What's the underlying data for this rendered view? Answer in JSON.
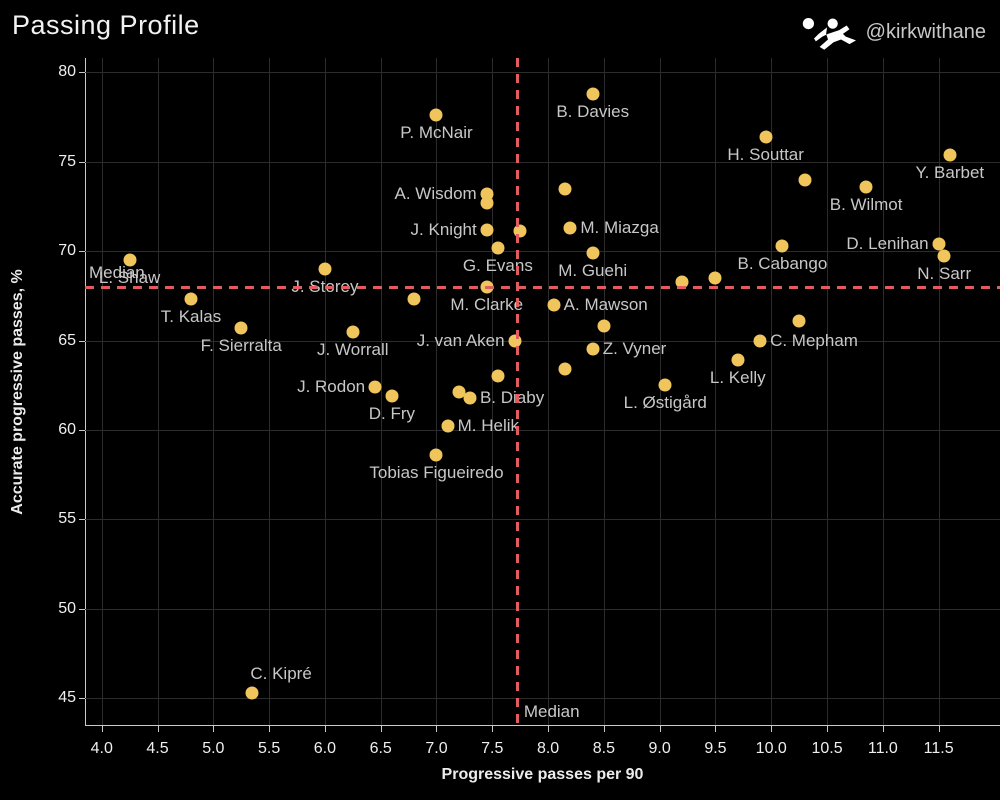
{
  "header": {
    "title": "Passing Profile",
    "handle": "@kirkwithane"
  },
  "chart_data": {
    "type": "scatter",
    "title": "Passing Profile",
    "xlabel": "Progressive passes per 90",
    "ylabel": "Accurate progressive passes, %",
    "xlim": [
      3.85,
      12.05
    ],
    "ylim": [
      43.5,
      80.8
    ],
    "grid": true,
    "x_ticks": [
      "4.0",
      "4.5",
      "5.0",
      "5.5",
      "6.0",
      "6.5",
      "7.0",
      "7.5",
      "8.0",
      "8.5",
      "9.0",
      "9.5",
      "10.0",
      "10.5",
      "11.0",
      "11.5"
    ],
    "x_tick_values": [
      4.0,
      4.5,
      5.0,
      5.5,
      6.0,
      6.5,
      7.0,
      7.5,
      8.0,
      8.5,
      9.0,
      9.5,
      10.0,
      10.5,
      11.0,
      11.5
    ],
    "y_ticks": [
      "45",
      "50",
      "55",
      "60",
      "65",
      "70",
      "75",
      "80"
    ],
    "y_tick_values": [
      45,
      50,
      55,
      60,
      65,
      70,
      75,
      80
    ],
    "median_x": 7.72,
    "median_y": 68.0,
    "median_label": "Median",
    "colors": {
      "background": "#000000",
      "dot": "#efc55c",
      "median_line": "#e05c5e",
      "point_label": "#c7c7c7",
      "axis_text": "#efefef",
      "gridline": "#2c2c2c"
    },
    "points": [
      {
        "name": "L. Shaw",
        "x": 4.25,
        "y": 69.5,
        "anchor": "below"
      },
      {
        "name": "T. Kalas",
        "x": 4.8,
        "y": 67.3,
        "anchor": "below"
      },
      {
        "name": "F. Sierralta",
        "x": 5.25,
        "y": 65.7,
        "anchor": "below"
      },
      {
        "name": "C. Kipré",
        "x": 5.35,
        "y": 45.3,
        "anchor": "above-right"
      },
      {
        "name": "J. Storey",
        "x": 6.0,
        "y": 69.0,
        "anchor": "below"
      },
      {
        "name": "J. Worrall",
        "x": 6.25,
        "y": 65.5,
        "anchor": "below"
      },
      {
        "name": "J. Rodon",
        "x": 6.45,
        "y": 62.4,
        "anchor": "left"
      },
      {
        "name": "D. Fry",
        "x": 6.6,
        "y": 61.9,
        "anchor": "below"
      },
      {
        "name": "",
        "x": 6.8,
        "y": 67.3,
        "anchor": ""
      },
      {
        "name": "P. McNair",
        "x": 7.0,
        "y": 77.6,
        "anchor": "below"
      },
      {
        "name": "Tobias Figueiredo",
        "x": 7.0,
        "y": 58.6,
        "anchor": "below"
      },
      {
        "name": "M. Helik",
        "x": 7.1,
        "y": 60.2,
        "anchor": "right"
      },
      {
        "name": "",
        "x": 7.2,
        "y": 62.1,
        "anchor": ""
      },
      {
        "name": "B. Diaby",
        "x": 7.3,
        "y": 61.8,
        "anchor": "right"
      },
      {
        "name": "A. Wisdom",
        "x": 7.45,
        "y": 73.2,
        "anchor": "left"
      },
      {
        "name": "",
        "x": 7.45,
        "y": 72.7,
        "anchor": ""
      },
      {
        "name": "J. Knight",
        "x": 7.45,
        "y": 71.2,
        "anchor": "left"
      },
      {
        "name": "G. Evans",
        "x": 7.55,
        "y": 70.2,
        "anchor": "below"
      },
      {
        "name": "M. Clarke",
        "x": 7.45,
        "y": 68.0,
        "anchor": "below"
      },
      {
        "name": "",
        "x": 7.55,
        "y": 63.0,
        "anchor": ""
      },
      {
        "name": "J. van Aken",
        "x": 7.7,
        "y": 65.0,
        "anchor": "left"
      },
      {
        "name": "",
        "x": 7.75,
        "y": 71.1,
        "anchor": ""
      },
      {
        "name": "A. Mawson",
        "x": 8.05,
        "y": 67.0,
        "anchor": "right"
      },
      {
        "name": "",
        "x": 8.15,
        "y": 63.4,
        "anchor": ""
      },
      {
        "name": "",
        "x": 8.15,
        "y": 73.5,
        "anchor": ""
      },
      {
        "name": "M. Miazga",
        "x": 8.2,
        "y": 71.3,
        "anchor": "right"
      },
      {
        "name": "Z. Vyner",
        "x": 8.4,
        "y": 64.5,
        "anchor": "right"
      },
      {
        "name": "M. Guehi",
        "x": 8.4,
        "y": 69.9,
        "anchor": "below"
      },
      {
        "name": "B. Davies",
        "x": 8.4,
        "y": 78.8,
        "anchor": "below"
      },
      {
        "name": "",
        "x": 8.5,
        "y": 65.8,
        "anchor": ""
      },
      {
        "name": "L. Østigård",
        "x": 9.05,
        "y": 62.5,
        "anchor": "below"
      },
      {
        "name": "",
        "x": 9.2,
        "y": 68.3,
        "anchor": ""
      },
      {
        "name": "",
        "x": 9.5,
        "y": 68.5,
        "anchor": ""
      },
      {
        "name": "L. Kelly",
        "x": 9.7,
        "y": 63.9,
        "anchor": "below"
      },
      {
        "name": "C. Mepham",
        "x": 9.9,
        "y": 65.0,
        "anchor": "right"
      },
      {
        "name": "H. Souttar",
        "x": 9.95,
        "y": 76.4,
        "anchor": "below"
      },
      {
        "name": "B. Cabango",
        "x": 10.1,
        "y": 70.3,
        "anchor": "below"
      },
      {
        "name": "",
        "x": 10.25,
        "y": 66.1,
        "anchor": ""
      },
      {
        "name": "",
        "x": 10.3,
        "y": 74.0,
        "anchor": ""
      },
      {
        "name": "B. Wilmot",
        "x": 10.85,
        "y": 73.6,
        "anchor": "below"
      },
      {
        "name": "D. Lenihan",
        "x": 11.5,
        "y": 70.4,
        "anchor": "left"
      },
      {
        "name": "N. Sarr",
        "x": 11.55,
        "y": 69.7,
        "anchor": "below"
      },
      {
        "name": "Y. Barbet",
        "x": 11.6,
        "y": 75.4,
        "anchor": "below"
      }
    ]
  }
}
